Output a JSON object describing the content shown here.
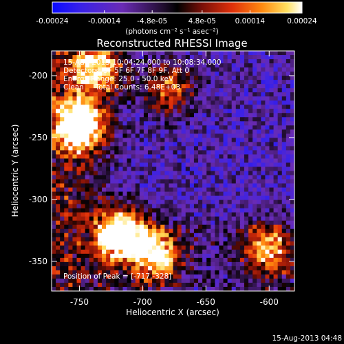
{
  "colorbar": {
    "tick_labels": [
      "-0.00024",
      "-0.00014",
      "-4.8e-05",
      "4.8e-05",
      "0.00014",
      "0.00024"
    ],
    "tick_values": [
      -0.00024,
      -0.00014,
      -4.8e-05,
      4.8e-05,
      0.00014,
      0.00024
    ],
    "range": [
      -0.00024,
      0.00024
    ],
    "units_label": "(photons cm⁻² s⁻¹ asec⁻²)"
  },
  "header": {
    "title": "Reconstructed RHESSI Image"
  },
  "annotations": {
    "time_line": "15-Aug-2013 10:04:24.000 to 10:08:34.000",
    "detectors_line": "Detectors: 3F 5F 6F 7F 8F 9F, Att 0",
    "energy_line": "Energy Range: 25.0 - 50.0 keV",
    "clean_line": "Clean     Total Counts: 6.48E+03",
    "peak_line": "Position of Peak = [-717,-328]"
  },
  "footer": {
    "timestamp": "15-Aug-2013 04:48"
  },
  "chart_data": {
    "type": "heatmap",
    "title": "Reconstructed RHESSI Image",
    "xlabel": "Heliocentric X (arcsec)",
    "ylabel": "Heliocentric Y (arcsec)",
    "xlim": [
      -772,
      -580
    ],
    "ylim": [
      -374,
      -180
    ],
    "x_ticks": [
      -750,
      -700,
      -650,
      -600
    ],
    "y_ticks": [
      -200,
      -250,
      -300,
      -350
    ],
    "x_tick_labels": [
      "-750",
      "-700",
      "-650",
      "-600"
    ],
    "y_tick_labels": [
      "-200",
      "-250",
      "-300",
      "-350"
    ],
    "colormap": "blue-purple-black-red-yellow-white",
    "peak_position": [
      -717,
      -328
    ],
    "bright_regions": [
      {
        "x": -750,
        "y": -240,
        "level": 0.9
      },
      {
        "x": -717,
        "y": -328,
        "level": 1.0
      },
      {
        "x": -690,
        "y": -345,
        "level": 0.75
      },
      {
        "x": -735,
        "y": -195,
        "level": 0.7
      },
      {
        "x": -600,
        "y": -340,
        "level": 0.6
      },
      {
        "x": -680,
        "y": -210,
        "level": 0.55
      }
    ]
  }
}
